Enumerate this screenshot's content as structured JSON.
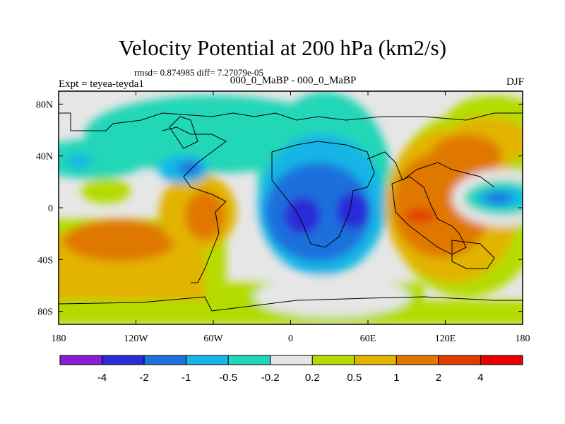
{
  "chart_data": {
    "type": "contour-map",
    "title": "Velocity Potential at 200 hPa (km2/s)",
    "stats": "rmsd= 0.874985 diff= 7.27079e-05",
    "experiment": "Expt = teyea-teyda1",
    "comparison": "000_0_MaBP - 000_0_MaBP",
    "season": "DJF",
    "x_ticks": [
      "180",
      "120W",
      "60W",
      "0",
      "60E",
      "120E",
      "180"
    ],
    "y_ticks": [
      "80N",
      "40N",
      "0",
      "40S",
      "80S"
    ],
    "xlim_deg": [
      -180,
      180
    ],
    "ylim_deg": [
      -90,
      90
    ],
    "colorbar": {
      "colors": [
        "#8a1bd6",
        "#2a2ad8",
        "#1e70dc",
        "#17b5e6",
        "#22d6b8",
        "#e6e6e6",
        "#b4dc00",
        "#e2b400",
        "#e07800",
        "#e23c00",
        "#e60000"
      ],
      "labels": [
        "-4",
        "-2",
        "-1",
        "-0.5",
        "-0.2",
        "0.2",
        "0.5",
        "1",
        "2",
        "4"
      ]
    }
  }
}
